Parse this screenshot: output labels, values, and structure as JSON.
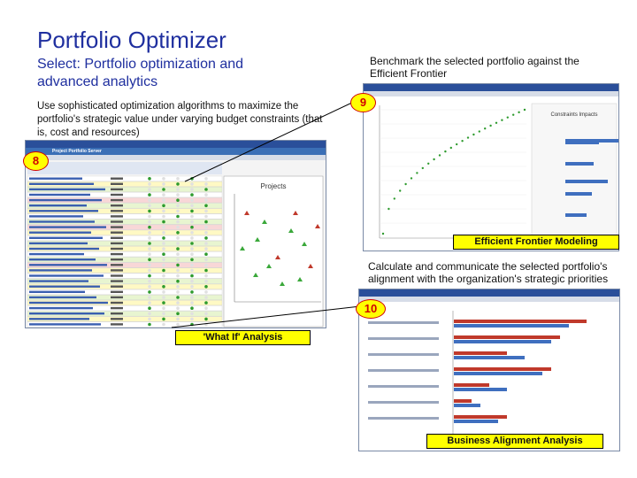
{
  "slide": {
    "title": "Portfolio Optimizer",
    "subtitle": "Select: Portfolio optimization and advanced analytics",
    "description": "Use sophisticated optimization algorithms to maximize the portfolio's strategic value under varying budget constraints (that is, cost and resources)",
    "benchmark_text": "Benchmark the selected portfolio against the Efficient Frontier",
    "calculate_text": "Calculate and communicate the selected portfolio's alignment with the organization's strategic priorities"
  },
  "callouts": {
    "badge_8": "8",
    "badge_9": "9",
    "badge_10": "10",
    "efficient_frontier_label": "Efficient Frontier Modeling",
    "what_if_label": "'What If' Analysis",
    "business_alignment_label": "Business Alignment Analysis"
  },
  "screenshot_projects": {
    "window_title": "Project Portfolio Server",
    "chart_title": "Projects"
  },
  "screenshot_frontier": {
    "chart_title": "Constraints Impacts"
  },
  "colors": {
    "title_blue": "#1f2f9f",
    "highlight_yellow": "#ffff00",
    "badge_red": "#d00000",
    "window_blue": "#2a4f9a"
  }
}
